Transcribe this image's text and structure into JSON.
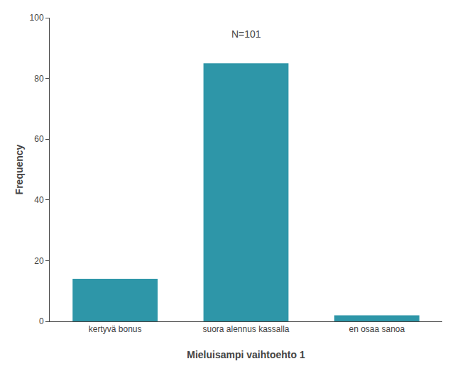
{
  "chart_data": {
    "type": "bar",
    "categories": [
      "kertyvä bonus",
      "suora alennus kassalla",
      "en osaa sanoa"
    ],
    "values": [
      14,
      85,
      2
    ],
    "color": "#2E96A8",
    "xlabel": "Mieluisampi vaihtoehto 1",
    "ylabel": "Frequency",
    "annotation": "N=101",
    "ylim": [
      0,
      100
    ],
    "yticks": [
      0,
      20,
      40,
      60,
      80,
      100
    ],
    "grid": false
  }
}
